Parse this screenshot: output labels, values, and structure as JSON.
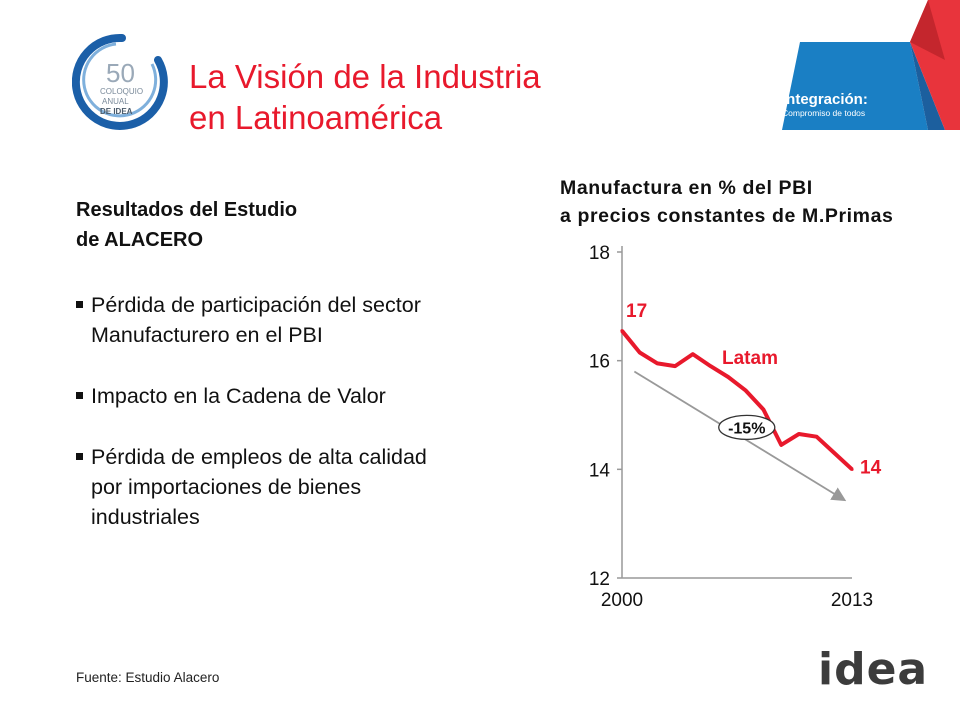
{
  "header": {
    "logo_colloquium": [
      "50",
      "COLOQUIO",
      "ANUAL",
      "DE IDEA"
    ],
    "title_lines": [
      "La Visión de la Industria",
      "en Latinoamérica"
    ],
    "integration_badge": {
      "title": "Integración:",
      "subtitle": "Compromiso de todos"
    }
  },
  "content": {
    "subhead_lines": [
      "Resultados del Estudio",
      "de ALACERO"
    ],
    "bullets": [
      [
        "Pérdida de participación del sector",
        "Manufacturero en el PBI"
      ],
      [
        "Impacto en la Cadena de Valor"
      ],
      [
        "Pérdida de empleos de alta calidad",
        "por importaciones de bienes",
        "industriales"
      ]
    ]
  },
  "chart_title_lines": [
    "Manufactura en % del PBI",
    "a precios constantes de M.Primas"
  ],
  "chart_data": {
    "type": "line",
    "title": "Manufactura en % del PBI a precios constantes de M.Primas",
    "x": [
      2000,
      2001,
      2002,
      2003,
      2004,
      2005,
      2006,
      2007,
      2008,
      2009,
      2010,
      2011,
      2012,
      2013
    ],
    "series": [
      {
        "name": "Latam",
        "values": [
          16.55,
          16.15,
          15.95,
          15.9,
          16.12,
          15.9,
          15.7,
          15.45,
          15.1,
          14.45,
          14.65,
          14.6,
          14.3,
          14.0
        ]
      }
    ],
    "trend": {
      "from": [
        2000.7,
        15.8
      ],
      "to": [
        2012.5,
        13.45
      ],
      "label": "-15%"
    },
    "annotations": {
      "start_label": "17",
      "end_label": "14"
    },
    "yticks": [
      12,
      14,
      16,
      18
    ],
    "xtick_labels": [
      "2000",
      "2013"
    ],
    "ylim": [
      12,
      18
    ],
    "xlim": [
      2000,
      2013
    ],
    "colors": {
      "series": "#e8192c",
      "trend": "#999999",
      "axis": "#999999"
    }
  },
  "footer": {
    "source": "Fuente: Estudio Alacero",
    "brand": "idea"
  }
}
